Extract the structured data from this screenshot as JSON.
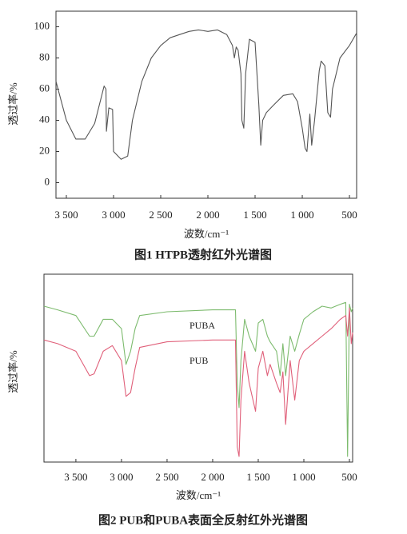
{
  "chart_data": [
    {
      "type": "line",
      "title": "图1   HTPB透射红外光谱图",
      "x_label": "波数/cm⁻¹",
      "y_label": "透过率/%",
      "xlim": [
        3610,
        424
      ],
      "ylim": [
        -10,
        110
      ],
      "xticks": [
        {
          "value": 3500,
          "label": "3 500"
        },
        {
          "value": 3000,
          "label": "3 000"
        },
        {
          "value": 2500,
          "label": "2 500"
        },
        {
          "value": 2000,
          "label": "2 000"
        },
        {
          "value": 1500,
          "label": "1 500"
        },
        {
          "value": 1000,
          "label": "1 000"
        },
        500
      ],
      "yticks": [
        0,
        20,
        40,
        60,
        80,
        100
      ],
      "x": [
        3610,
        3500,
        3400,
        3300,
        3200,
        3100,
        3080,
        3075,
        3050,
        3010,
        3000,
        2920,
        2850,
        2800,
        2700,
        2600,
        2500,
        2400,
        2200,
        2100,
        2000,
        1900,
        1800,
        1740,
        1720,
        1700,
        1680,
        1650,
        1640,
        1620,
        1600,
        1560,
        1500,
        1460,
        1440,
        1420,
        1380,
        1300,
        1200,
        1100,
        1050,
        1000,
        970,
        950,
        920,
        900,
        870,
        820,
        800,
        760,
        730,
        700,
        680,
        600,
        500,
        424
      ],
      "values": [
        65,
        40,
        28,
        28,
        38,
        62,
        60,
        33,
        48,
        47,
        20,
        15,
        17,
        40,
        65,
        80,
        88,
        93,
        97,
        98,
        97,
        98,
        95,
        88,
        80,
        87,
        85,
        70,
        40,
        35,
        70,
        92,
        90,
        50,
        24,
        40,
        45,
        50,
        56,
        57,
        52,
        35,
        22,
        20,
        44,
        24,
        40,
        72,
        78,
        75,
        45,
        42,
        60,
        80,
        88,
        96
      ],
      "color": "#555555"
    },
    {
      "type": "line",
      "title": "图2   PUB和PUBA表面全反射红外光谱图",
      "x_label": "波数/cm⁻¹",
      "y_label": "透过率/%",
      "xlim": [
        3850,
        465
      ],
      "ylim": [
        0,
        100
      ],
      "xticks": [
        {
          "value": 3500,
          "label": "3 500"
        },
        {
          "value": 3000,
          "label": "3 000"
        },
        {
          "value": 2500,
          "label": "2 500"
        },
        {
          "value": 2000,
          "label": "2 000"
        },
        {
          "value": 1500,
          "label": "1 500"
        },
        {
          "value": 1000,
          "label": "1 000"
        },
        500
      ],
      "x": [
        3850,
        3700,
        3500,
        3350,
        3300,
        3200,
        3100,
        3000,
        2950,
        2900,
        2850,
        2800,
        2500,
        2000,
        1750,
        1730,
        1710,
        1690,
        1650,
        1600,
        1530,
        1500,
        1450,
        1400,
        1370,
        1300,
        1260,
        1230,
        1200,
        1150,
        1100,
        1050,
        1000,
        900,
        800,
        700,
        600,
        540,
        520,
        500,
        480,
        465
      ],
      "series": [
        {
          "name": "PUBA",
          "color": "#7dbb6e",
          "values": [
            83,
            81,
            78,
            67,
            67,
            76,
            76,
            71,
            52,
            59,
            71,
            78,
            80,
            81,
            81,
            42,
            29,
            54,
            76,
            67,
            59,
            74,
            76,
            67,
            64,
            59,
            46,
            63,
            46,
            67,
            59,
            68,
            76,
            80,
            83,
            82,
            84,
            85,
            3,
            84,
            80,
            82
          ]
        },
        {
          "name": "PUB",
          "color": "#e0607a",
          "values": [
            65,
            63,
            59,
            46,
            47,
            59,
            62,
            54,
            35,
            37,
            50,
            61,
            64,
            65,
            65,
            8,
            3,
            33,
            59,
            42,
            27,
            50,
            59,
            46,
            52,
            42,
            37,
            48,
            20,
            54,
            33,
            54,
            59,
            63,
            67,
            71,
            76,
            78,
            67,
            82,
            63,
            69
          ]
        }
      ]
    }
  ]
}
